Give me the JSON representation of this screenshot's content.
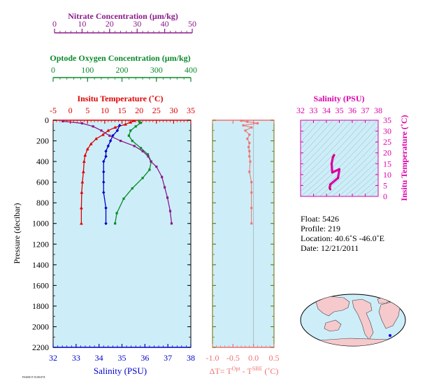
{
  "colors": {
    "nitrate": "#8b1a8b",
    "oxygen": "#0a8a2a",
    "temperature": "#dd0000",
    "salinity": "#0000cc",
    "delta": "#f07070",
    "ts": "#dd00aa",
    "panel_bg": "#cdeef8",
    "delta_axis": "#6b6b00"
  },
  "labels": {
    "nitrate_title": "Nitrate Concentration (µm/kg)",
    "oxygen_title": "Optode Oxygen Concentration (µm/kg)",
    "temp_title": "Insitu Temperature (˚C)",
    "pressure_title": "Pressure (decibar)",
    "salinity_bottom_title": "Salinity (PSU)",
    "delta_title_prefix": "ΔT= T",
    "delta_title_sup1": "Opt",
    "delta_title_mid": " - T",
    "delta_title_sup2": "SBE",
    "delta_title_suffix": " (˚C)",
    "ts_top_title": "Salinity (PSU)",
    "ts_right_title": "Insitu Temperature (˚C)",
    "tiny_note": "FSI2011T15:00:07Z"
  },
  "info": {
    "float": "Float:  5426",
    "profile": "Profile:  219",
    "location": "Location:  40.6˚S  -46.0˚E",
    "date": "Date:  12/21/2011"
  },
  "chart_data": [
    {
      "id": "profiles",
      "type": "line",
      "ylim": [
        2200,
        0
      ],
      "y_ticks": [
        0,
        200,
        400,
        600,
        800,
        1000,
        1200,
        1400,
        1600,
        1800,
        2000,
        2200
      ],
      "grid": false,
      "axes": {
        "nitrate": {
          "range": [
            0,
            50
          ],
          "ticks": [
            0,
            10,
            20,
            30,
            40,
            50
          ]
        },
        "oxygen": {
          "range": [
            0,
            400
          ],
          "ticks": [
            0,
            100,
            200,
            300,
            400
          ]
        },
        "temperature": {
          "range": [
            -5,
            35
          ],
          "ticks": [
            -5,
            0,
            5,
            10,
            15,
            20,
            25,
            30,
            35
          ]
        },
        "salinity": {
          "range": [
            32,
            38
          ],
          "ticks": [
            32,
            33,
            34,
            35,
            36,
            37,
            38
          ]
        }
      },
      "series": [
        {
          "name": "Insitu Temperature",
          "axis": "temperature",
          "marker": "triangle",
          "x": [
            18.5,
            17.5,
            16.0,
            13.0,
            11.0,
            9.5,
            7.5,
            6.0,
            5.0,
            4.3,
            4.0,
            3.8,
            3.5,
            3.3,
            3.2,
            3.2
          ],
          "y": [
            5,
            20,
            40,
            70,
            100,
            140,
            180,
            230,
            280,
            340,
            400,
            500,
            600,
            700,
            850,
            1000
          ]
        },
        {
          "name": "Salinity",
          "axis": "salinity",
          "marker": "diamond",
          "x": [
            34.9,
            34.8,
            34.6,
            34.5,
            34.4,
            34.3,
            34.3,
            34.2,
            34.2,
            34.2,
            34.2,
            34.3,
            34.3
          ],
          "y": [
            50,
            100,
            150,
            200,
            250,
            300,
            350,
            400,
            500,
            600,
            700,
            850,
            1000
          ]
        },
        {
          "name": "Optode Oxygen",
          "axis": "oxygen",
          "marker": "square",
          "x": [
            250,
            255,
            240,
            225,
            220,
            230,
            255,
            275,
            285,
            280,
            260,
            230,
            205,
            185,
            180
          ],
          "y": [
            10,
            25,
            60,
            100,
            150,
            200,
            270,
            330,
            400,
            480,
            560,
            660,
            760,
            900,
            1000
          ]
        },
        {
          "name": "Nitrate",
          "axis": "nitrate",
          "marker": "square",
          "x": [
            3,
            10,
            14,
            17,
            20,
            24,
            29,
            32,
            34,
            35,
            37,
            39,
            40,
            41,
            42,
            42.5
          ],
          "y": [
            10,
            30,
            60,
            100,
            150,
            200,
            250,
            300,
            350,
            400,
            450,
            550,
            650,
            750,
            880,
            1000
          ]
        }
      ]
    },
    {
      "id": "delta_t",
      "type": "scatter",
      "xlim": [
        -1.0,
        0.5
      ],
      "x_ticks": [
        -1.0,
        -0.5,
        0.0,
        0.5
      ],
      "x_tick_labels": [
        "-1.0",
        "-0.5",
        "0.0",
        "0.5"
      ],
      "ylim": [
        2200,
        0
      ],
      "series": [
        {
          "name": "ΔT",
          "x": [
            -0.3,
            -0.15,
            0.1,
            -0.25,
            -0.05,
            -0.2,
            -0.1,
            -0.15,
            -0.1,
            -0.12,
            -0.1,
            -0.1,
            -0.08,
            -0.1,
            -0.05,
            -0.05,
            -0.05,
            -0.05
          ],
          "y": [
            5,
            15,
            30,
            50,
            70,
            100,
            140,
            180,
            220,
            260,
            300,
            350,
            400,
            500,
            600,
            700,
            850,
            1000
          ]
        }
      ]
    },
    {
      "id": "ts_diagram",
      "type": "scatter",
      "xlim": [
        32,
        38
      ],
      "x_ticks": [
        32,
        33,
        34,
        35,
        36,
        37,
        38
      ],
      "ylim": [
        0,
        35
      ],
      "y_ticks": [
        0,
        5,
        10,
        15,
        20,
        25,
        30,
        35
      ],
      "series": [
        {
          "name": "T-S",
          "x": [
            34.3,
            34.25,
            34.3,
            34.9,
            35.0,
            34.45,
            34.4,
            34.5,
            34.6
          ],
          "y": [
            3.2,
            4.0,
            5.5,
            8.5,
            12.5,
            11.0,
            15.0,
            18.0,
            19.0
          ]
        }
      ]
    }
  ]
}
